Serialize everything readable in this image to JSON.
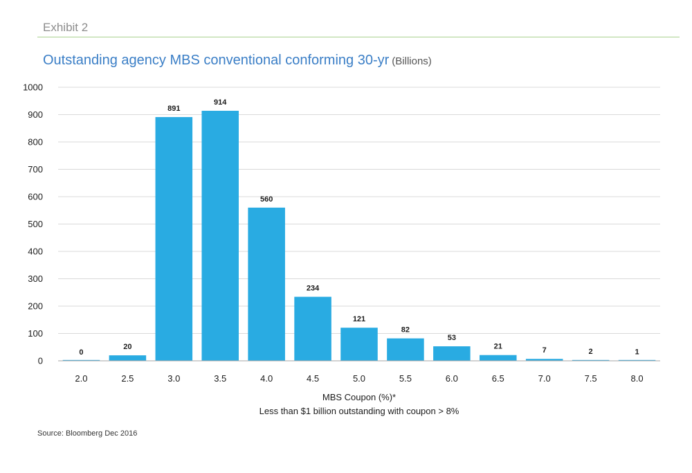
{
  "header": {
    "exhibit": "Exhibit 2",
    "title": "Outstanding agency MBS conventional conforming 30-yr",
    "units": "(Billions)"
  },
  "footer": {
    "source": "Source: Bloomberg Dec 2016"
  },
  "colors": {
    "bar": "#29abe2",
    "gridline": "#d9d9d9",
    "axis": "#a6a6a6",
    "title": "#3a7ec6",
    "exhibit": "#8c8c8c",
    "exhibit_rule": "#a8d08d"
  },
  "chart_data": {
    "type": "bar",
    "categories": [
      "2.0",
      "2.5",
      "3.0",
      "3.5",
      "4.0",
      "4.5",
      "5.0",
      "5.5",
      "6.0",
      "6.5",
      "7.0",
      "7.5",
      "8.0"
    ],
    "values": [
      0,
      20,
      891,
      914,
      560,
      234,
      121,
      82,
      53,
      21,
      7,
      2,
      1
    ],
    "title": "Outstanding agency MBS conventional conforming 30-yr (Billions)",
    "xlabel": "MBS Coupon (%)*",
    "xlabel_note": "Less than $1 billion outstanding with coupon > 8%",
    "ylabel": "",
    "ylim": [
      0,
      1000
    ],
    "yticks": [
      0,
      100,
      200,
      300,
      400,
      500,
      600,
      700,
      800,
      900,
      1000
    ],
    "grid": true,
    "legend": "none",
    "data_labels": true
  }
}
